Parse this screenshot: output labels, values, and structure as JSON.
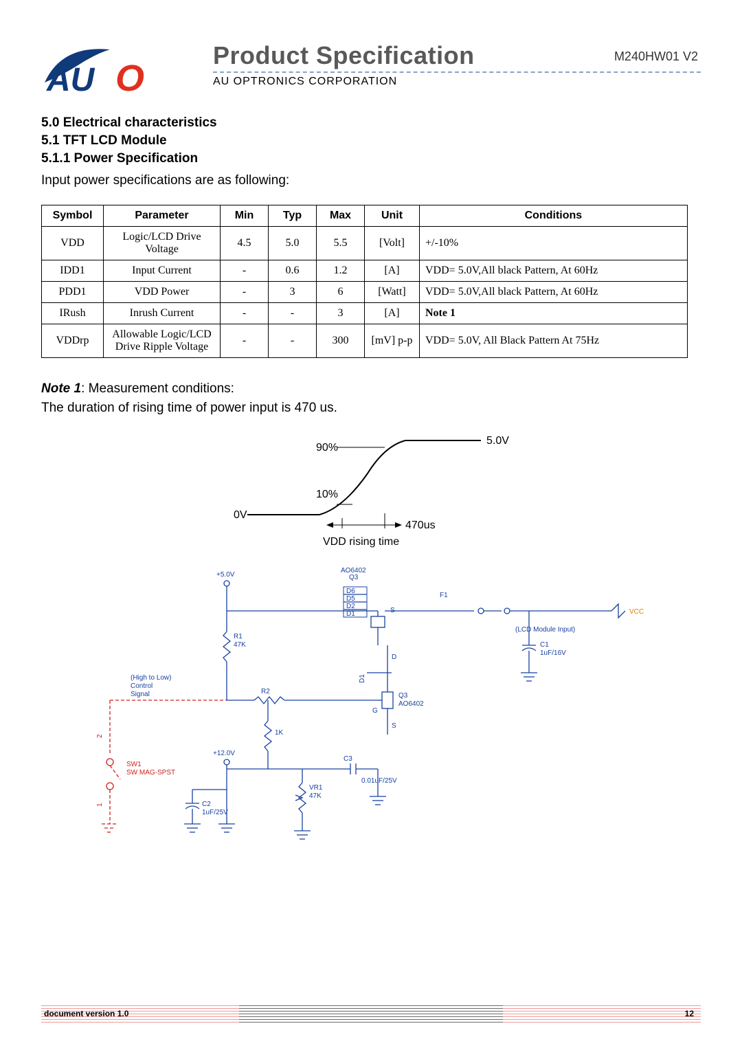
{
  "header": {
    "doc_title": "Product Specification",
    "product_number": "M240HW01 V2",
    "corp": "AU OPTRONICS CORPORATION",
    "logo": {
      "text": "AUO",
      "swoosh_color": "#103a7a",
      "o_color": "#e03020"
    }
  },
  "sections": {
    "s5_0": "5.0 Electrical characteristics",
    "s5_1": "5.1 TFT LCD Module",
    "s5_1_1": "5.1.1 Power Specification",
    "intro": "Input power specifications are as following:"
  },
  "table": {
    "columns": [
      "Symbol",
      "Parameter",
      "Min",
      "Typ",
      "Max",
      "Unit",
      "Conditions"
    ],
    "rows": [
      {
        "symbol": "VDD",
        "param_l1": "Logic/LCD Drive",
        "param_l2": "Voltage",
        "min": "4.5",
        "typ": "5.0",
        "max": "5.5",
        "unit": "[Volt]",
        "cond": "+/-10%"
      },
      {
        "symbol": "IDD1",
        "param_l1": "Input Current",
        "param_l2": "",
        "min": "-",
        "typ": "0.6",
        "max": "1.2",
        "unit": "[A]",
        "cond": "VDD= 5.0V,All black Pattern, At 60Hz"
      },
      {
        "symbol": "PDD1",
        "param_l1": "VDD Power",
        "param_l2": "",
        "min": "-",
        "typ": "3",
        "max": "6",
        "unit": "[Watt]",
        "cond": "VDD= 5.0V,All black Pattern, At 60Hz"
      },
      {
        "symbol": "IRush",
        "param_l1": "Inrush Current",
        "param_l2": "",
        "min": "-",
        "typ": "-",
        "max": "3",
        "unit": "[A]",
        "cond": "Note 1"
      },
      {
        "symbol": "VDDrp",
        "param_l1": "Allowable Logic/LCD",
        "param_l2": "Drive Ripple Voltage",
        "min": "-",
        "typ": "-",
        "max": "300",
        "unit": "[mV] p-p",
        "cond": "VDD= 5.0V, All Black Pattern At 75Hz"
      }
    ]
  },
  "note": {
    "label": "Note 1",
    "text": ":   Measurement conditions:",
    "line2": "The duration of rising time of power input is 470 us."
  },
  "fig1": {
    "labels": {
      "lv90": "90%",
      "lv10": "10%",
      "v5": "5.0V",
      "v0": "0V",
      "t": "470us",
      "caption": "VDD rising time"
    },
    "colors": {
      "line": "#000000",
      "dim": "#000000"
    }
  },
  "fig2": {
    "labels": {
      "p5": "+5.0V",
      "p12": "+12.0V",
      "q3a": "Q3",
      "q3a2": "AO6402",
      "q3b": "Q3",
      "q3b2": "AO6402",
      "d6": "D6",
      "d5": "D5",
      "d2": "D2",
      "d1": "D1",
      "f1": "F1",
      "vcc": "VCC",
      "lcd": "(LCD Module Input)",
      "c1": "C1",
      "c1v": "1uF/16V",
      "r1": "R1",
      "r1v": "47K",
      "r2": "R2",
      "r2v": "",
      "r3": "1K",
      "c3": "C3",
      "c3v": "0.01uF/25V",
      "vr1": "VR1",
      "vr1v": "47K",
      "c2": "C2",
      "c2v": "1uF/25V",
      "sw1": "SW1",
      "sw1b": "SW MAG-SPST",
      "ctl1": "(High to Low)",
      "ctl2": "Control",
      "ctl3": "Signal",
      "s": "S",
      "g": "G",
      "d": "D",
      "num1": "1",
      "num2": "2"
    }
  },
  "footer": {
    "docver": "document version 1.0",
    "page": "12"
  }
}
